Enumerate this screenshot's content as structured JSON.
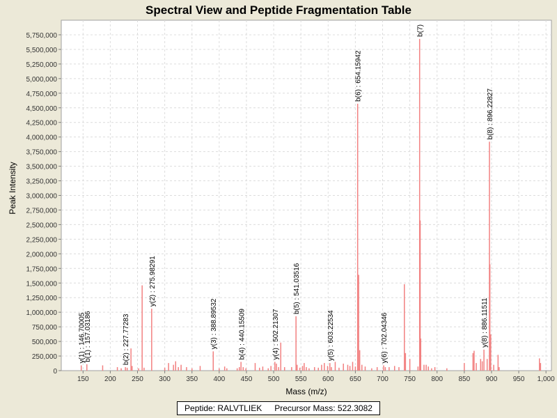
{
  "chart_data": {
    "type": "bar",
    "title": "Spectral View and Peptide Fragmentation Table",
    "xlabel": "Mass (m/z)",
    "ylabel": "Peak Intensity",
    "xlim": [
      110,
      1010
    ],
    "ylim": [
      0,
      6000000
    ],
    "x_ticks": [
      150,
      200,
      250,
      300,
      350,
      400,
      450,
      500,
      550,
      600,
      650,
      700,
      750,
      800,
      850,
      900,
      950,
      1000
    ],
    "x_tick_labels": [
      "150",
      "200",
      "250",
      "300",
      "350",
      "400",
      "450",
      "500",
      "550",
      "600",
      "650",
      "700",
      "750",
      "800",
      "850",
      "900",
      "950",
      "1,000"
    ],
    "y_ticks": [
      0,
      250000,
      500000,
      750000,
      1000000,
      1250000,
      1500000,
      1750000,
      2000000,
      2250000,
      2500000,
      2750000,
      3000000,
      3250000,
      3500000,
      3750000,
      4000000,
      4250000,
      4500000,
      4750000,
      5000000,
      5250000,
      5500000,
      5750000
    ],
    "y_tick_labels": [
      "0",
      "250,000",
      "500,000",
      "750,000",
      "1,000,000",
      "1,250,000",
      "1,500,000",
      "1,750,000",
      "2,000,000",
      "2,250,000",
      "2,500,000",
      "2,750,000",
      "3,000,000",
      "3,250,000",
      "3,500,000",
      "3,750,000",
      "4,000,000",
      "4,250,000",
      "4,500,000",
      "4,750,000",
      "5,000,000",
      "5,250,000",
      "5,500,000",
      "5,750,000"
    ],
    "grid": true,
    "peak_color": "#f28080",
    "peaks": [
      [
        146.7,
        90000
      ],
      [
        157.0,
        110000
      ],
      [
        186.0,
        90000
      ],
      [
        213.0,
        60000
      ],
      [
        220.0,
        40000
      ],
      [
        227.8,
        60000
      ],
      [
        231.0,
        50000
      ],
      [
        238.0,
        380000
      ],
      [
        240.0,
        80000
      ],
      [
        252.0,
        40000
      ],
      [
        258.5,
        1460000
      ],
      [
        262.0,
        50000
      ],
      [
        276.0,
        1060000
      ],
      [
        300.0,
        50000
      ],
      [
        307.0,
        130000
      ],
      [
        316.0,
        100000
      ],
      [
        320.0,
        160000
      ],
      [
        325.0,
        60000
      ],
      [
        330.0,
        100000
      ],
      [
        340.0,
        60000
      ],
      [
        350.0,
        40000
      ],
      [
        365.0,
        80000
      ],
      [
        389.0,
        330000
      ],
      [
        400.0,
        40000
      ],
      [
        410.0,
        70000
      ],
      [
        414.0,
        40000
      ],
      [
        433.0,
        40000
      ],
      [
        437.0,
        60000
      ],
      [
        440.0,
        150000
      ],
      [
        444.0,
        60000
      ],
      [
        449.0,
        40000
      ],
      [
        466.0,
        130000
      ],
      [
        474.0,
        50000
      ],
      [
        480.0,
        70000
      ],
      [
        490.0,
        40000
      ],
      [
        495.0,
        80000
      ],
      [
        502.2,
        150000
      ],
      [
        505.0,
        120000
      ],
      [
        509.0,
        60000
      ],
      [
        513.0,
        480000
      ],
      [
        520.0,
        60000
      ],
      [
        533.0,
        60000
      ],
      [
        541.0,
        930000
      ],
      [
        543.0,
        100000
      ],
      [
        548.0,
        50000
      ],
      [
        553.0,
        80000
      ],
      [
        556.0,
        130000
      ],
      [
        560.0,
        60000
      ],
      [
        565.0,
        40000
      ],
      [
        575.0,
        60000
      ],
      [
        582.0,
        50000
      ],
      [
        588.0,
        100000
      ],
      [
        593.0,
        130000
      ],
      [
        599.0,
        80000
      ],
      [
        603.2,
        130000
      ],
      [
        606.0,
        60000
      ],
      [
        613.0,
        150000
      ],
      [
        620.0,
        50000
      ],
      [
        628.0,
        120000
      ],
      [
        636.0,
        100000
      ],
      [
        640.0,
        80000
      ],
      [
        645.0,
        150000
      ],
      [
        650.0,
        70000
      ],
      [
        654.2,
        4570000
      ],
      [
        656.0,
        1640000
      ],
      [
        658.0,
        350000
      ],
      [
        662.0,
        100000
      ],
      [
        668.0,
        70000
      ],
      [
        680.0,
        40000
      ],
      [
        690.0,
        60000
      ],
      [
        702.0,
        90000
      ],
      [
        705.0,
        60000
      ],
      [
        712.0,
        60000
      ],
      [
        722.0,
        80000
      ],
      [
        730.0,
        60000
      ],
      [
        740.0,
        1480000
      ],
      [
        742.0,
        300000
      ],
      [
        750.0,
        200000
      ],
      [
        765.0,
        70000
      ],
      [
        768.0,
        5680000
      ],
      [
        769.0,
        2570000
      ],
      [
        770.0,
        550000
      ],
      [
        776.0,
        100000
      ],
      [
        780.0,
        100000
      ],
      [
        784.0,
        70000
      ],
      [
        790.0,
        40000
      ],
      [
        796.0,
        60000
      ],
      [
        818.0,
        40000
      ],
      [
        850.0,
        130000
      ],
      [
        866.0,
        300000
      ],
      [
        868.0,
        340000
      ],
      [
        872.0,
        130000
      ],
      [
        880.0,
        200000
      ],
      [
        883.0,
        160000
      ],
      [
        886.1,
        360000
      ],
      [
        892.0,
        200000
      ],
      [
        896.2,
        3920000
      ],
      [
        897.0,
        1820000
      ],
      [
        898.5,
        620000
      ],
      [
        904.0,
        100000
      ],
      [
        912.0,
        270000
      ],
      [
        914.0,
        60000
      ],
      [
        988.0,
        210000
      ],
      [
        990.0,
        130000
      ]
    ],
    "annotations": [
      {
        "text": "y(1) : 146.70005",
        "x": 146.7,
        "y": 90000
      },
      {
        "text": "b(1) : 157.03186",
        "x": 157.0,
        "y": 110000
      },
      {
        "text": "b(2) : 227.77283",
        "x": 227.8,
        "y": 60000
      },
      {
        "text": "y(2) : 275.98291",
        "x": 276.0,
        "y": 1060000
      },
      {
        "text": "y(3) : 388.89532",
        "x": 389.0,
        "y": 330000
      },
      {
        "text": "b(4) : 440.15509",
        "x": 440.2,
        "y": 150000
      },
      {
        "text": "y(4) : 502.21307",
        "x": 502.2,
        "y": 150000
      },
      {
        "text": "b(5) : 541.03516",
        "x": 541.0,
        "y": 930000
      },
      {
        "text": "y(5) : 603.22534",
        "x": 603.2,
        "y": 130000
      },
      {
        "text": "b(6) : 654.15942",
        "x": 654.2,
        "y": 4570000
      },
      {
        "text": "y(6) : 702.04346",
        "x": 702.0,
        "y": 90000
      },
      {
        "text": "b(7)",
        "x": 768.0,
        "y": 5680000
      },
      {
        "text": "y(8) : 886.11511",
        "x": 886.1,
        "y": 360000
      },
      {
        "text": "b(8) : 896.22827",
        "x": 896.2,
        "y": 3920000
      }
    ]
  },
  "legend": {
    "peptide_text": "Peptide: RALVTLIEK",
    "precursor_text": "Precursor Mass: 522.3082"
  }
}
